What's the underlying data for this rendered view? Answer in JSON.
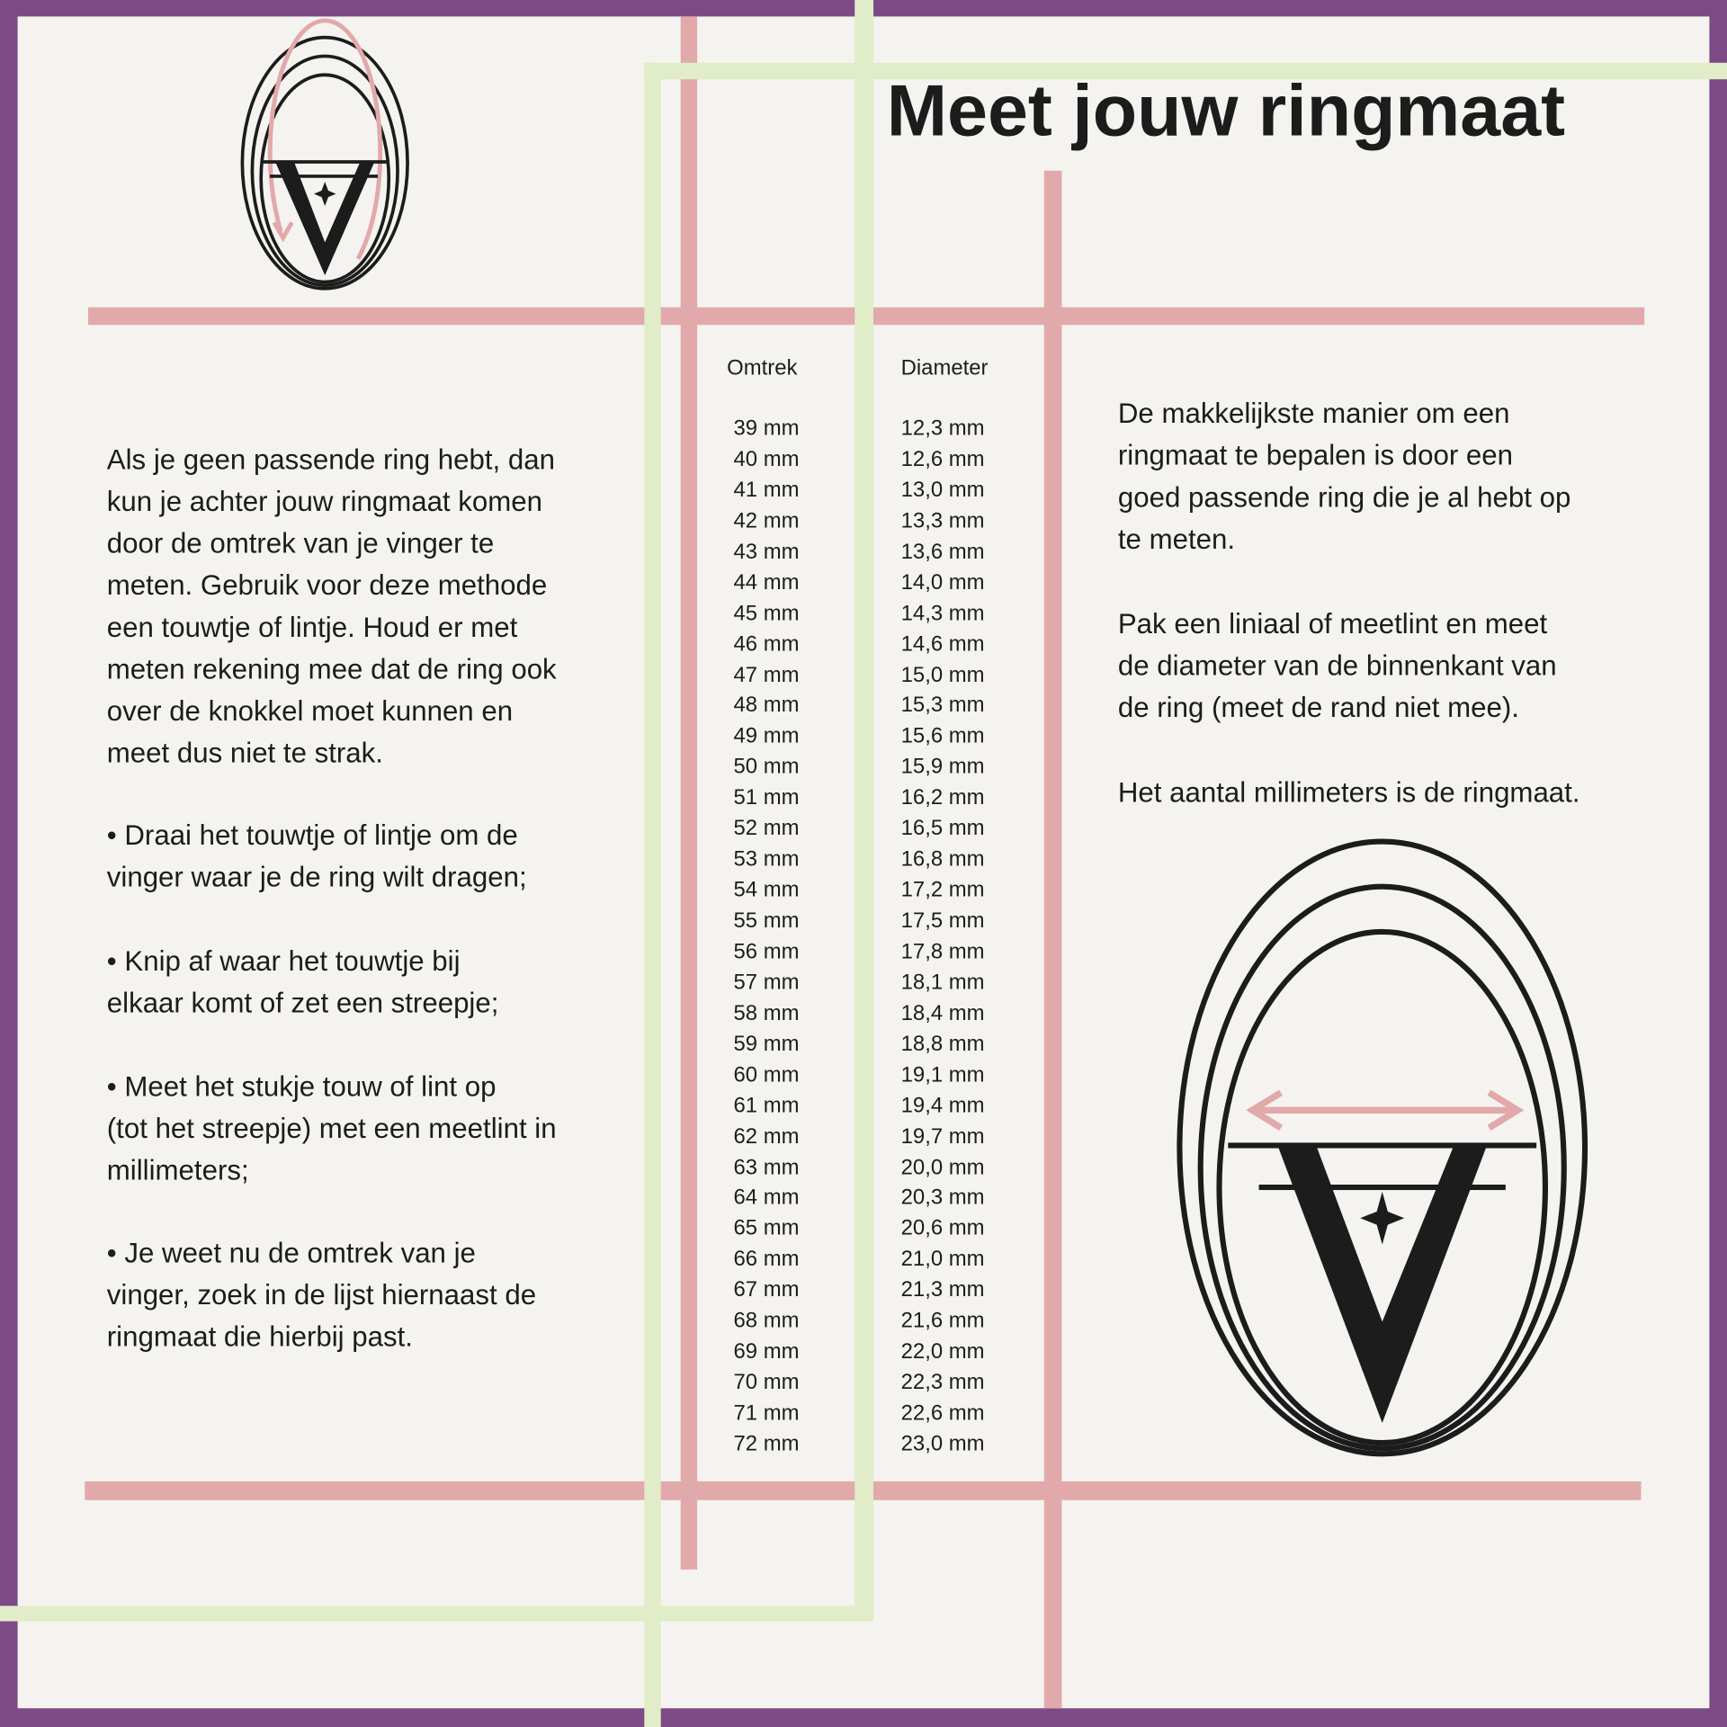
{
  "title": "Meet jouw ringmaat",
  "left_text": {
    "intro": "Als je geen passende ring hebt, dan\nkun je achter jouw ringmaat komen\ndoor de omtrek van je vinger te\nmeten. Gebruik voor deze methode\neen touwtje of lintje. Houd er met\nmeten rekening mee dat de ring ook\nover de knokkel moet kunnen en\nmeet dus niet te strak.",
    "steps": [
      "   • Draai het touwtje of lintje om de\nvinger waar je de ring wilt dragen;",
      "   • Knip af waar het touwtje bij\nelkaar komt of zet een streepje;",
      "   • Meet het stukje touw of lint op\n(tot het streepje) met een meetlint in\nmillimeters;",
      "   • Je weet nu de omtrek van je\nvinger, zoek in de lijst hiernaast de\nringmaat die hierbij past."
    ]
  },
  "table": {
    "headers": [
      "Omtrek",
      "Diameter"
    ],
    "omtrek": [
      "39 mm",
      "40 mm",
      "41 mm",
      "42 mm",
      "43 mm",
      "44 mm",
      "45 mm",
      "46 mm",
      "47 mm",
      "48 mm",
      "49 mm",
      "50 mm",
      "51 mm",
      "52 mm",
      "53 mm",
      "54 mm",
      "55 mm",
      "56 mm",
      "57 mm",
      "58 mm",
      "59 mm",
      "60 mm",
      "61 mm",
      "62 mm",
      "63 mm",
      "64 mm",
      "65 mm",
      "66 mm",
      "67 mm",
      "68 mm",
      "69 mm",
      "70 mm",
      "71 mm",
      "72 mm"
    ],
    "diameter": [
      "12,3 mm",
      "12,6 mm",
      "13,0 mm",
      "13,3 mm",
      "13,6 mm",
      "14,0 mm",
      "14,3 mm",
      "14,6 mm",
      "15,0 mm",
      "15,3 mm",
      "15,6 mm",
      "15,9 mm",
      "16,2 mm",
      "16,5 mm",
      "16,8 mm",
      "17,2 mm",
      "17,5 mm",
      "17,8 mm",
      "18,1 mm",
      "18,4 mm",
      "18,8 mm",
      "19,1 mm",
      "19,4 mm",
      "19,7 mm",
      "20,0 mm",
      "20,3 mm",
      "20,6 mm",
      "21,0 mm",
      "21,3 mm",
      "21,6 mm",
      "22,0 mm",
      "22,3 mm",
      "22,6 mm",
      "23,0 mm"
    ]
  },
  "right_text": {
    "p1": "De makkelijkste manier om een\nringmaat te bepalen is door een\ngoed passende ring die je al hebt op\nte meten.",
    "p2": "Pak een liniaal of meetlint en meet\nde diameter van de binnenkant van\nde ring (meet de rand niet mee).",
    "p3": "Het aantal millimeters is de ringmaat."
  },
  "colors": {
    "frame": "#7c4b86",
    "pink_lines": "#e2a9aa",
    "green_lines": "#e1ecc9",
    "background": "#f4f3ef",
    "text": "#1c1c1c"
  },
  "icons": {
    "small_logo": "ring-circumference-logo-icon",
    "large_logo": "ring-diameter-logo-icon"
  }
}
